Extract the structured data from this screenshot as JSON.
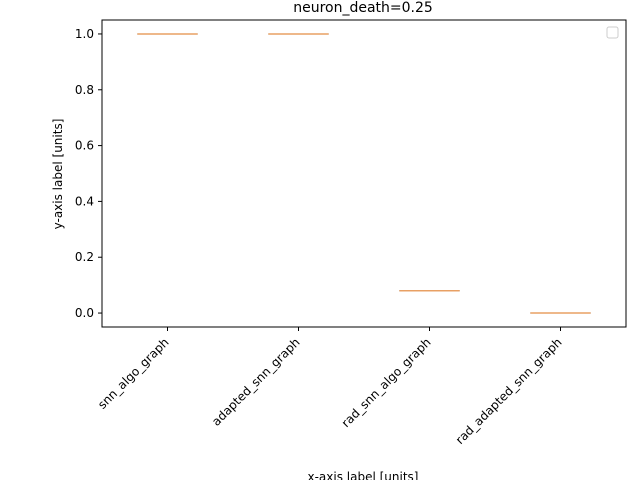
{
  "chart_data": {
    "type": "box",
    "title": "neuron_death=0.25",
    "xlabel": "x-axis label [units]",
    "ylabel": "y-axis label [units]",
    "ylim": [
      -0.05,
      1.05
    ],
    "yticks": [
      "0.0",
      "0.2",
      "0.4",
      "0.6",
      "0.8",
      "1.0"
    ],
    "ytick_values": [
      0.0,
      0.2,
      0.4,
      0.6,
      0.8,
      1.0
    ],
    "categories": [
      "snn_algo_graph",
      "adapted_snn_graph",
      "rad_snn_algo_graph",
      "rad_adapted_snn_graph"
    ],
    "values": [
      1.0,
      1.0,
      0.08,
      0.0
    ],
    "legend": "top-right (empty)",
    "grid": false,
    "colors": {
      "median": "#e8a064",
      "box": "#1f1f1f",
      "axis": "#000000"
    }
  }
}
